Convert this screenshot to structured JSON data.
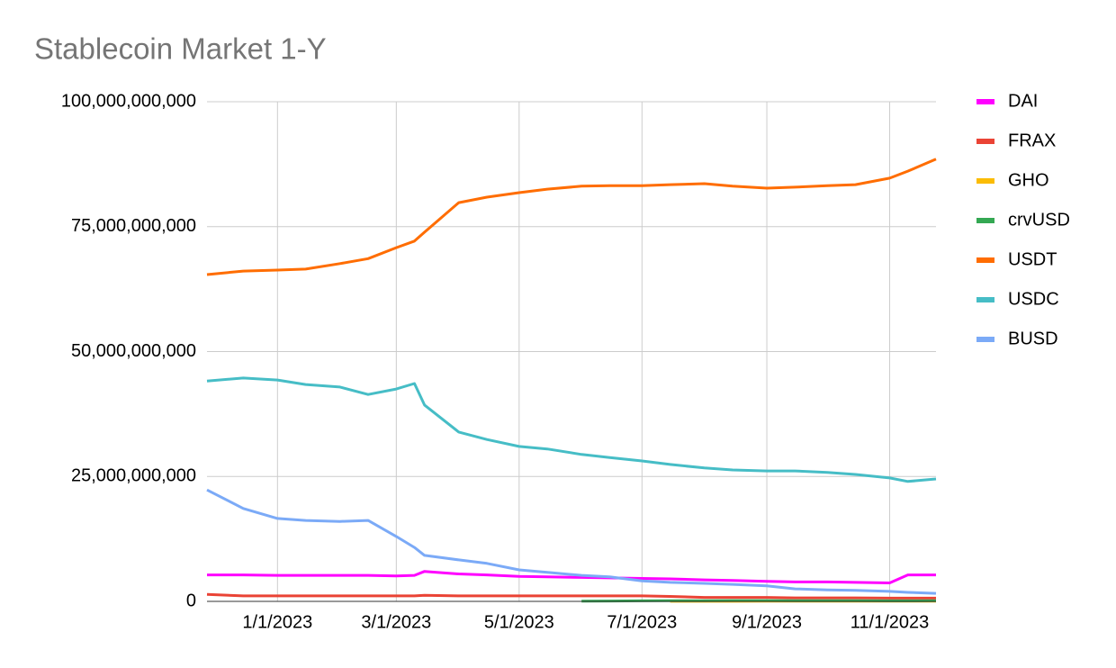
{
  "chart_data": {
    "type": "line",
    "title": "Stablecoin Market 1-Y",
    "x": [
      "2022-11-27",
      "2022-12-15",
      "2023-01-01",
      "2023-01-15",
      "2023-02-01",
      "2023-02-15",
      "2023-03-01",
      "2023-03-10",
      "2023-03-15",
      "2023-04-01",
      "2023-04-15",
      "2023-05-01",
      "2023-05-15",
      "2023-06-01",
      "2023-06-15",
      "2023-07-01",
      "2023-07-15",
      "2023-08-01",
      "2023-08-15",
      "2023-09-01",
      "2023-09-15",
      "2023-10-01",
      "2023-10-15",
      "2023-11-01",
      "2023-11-10",
      "2023-11-24"
    ],
    "xlim": [
      "2022-11-27",
      "2023-11-24"
    ],
    "xticks": [
      {
        "value": "2023-01-01",
        "label": "1/1/2023"
      },
      {
        "value": "2023-03-01",
        "label": "3/1/2023"
      },
      {
        "value": "2023-05-01",
        "label": "5/1/2023"
      },
      {
        "value": "2023-07-01",
        "label": "7/1/2023"
      },
      {
        "value": "2023-09-01",
        "label": "9/1/2023"
      },
      {
        "value": "2023-11-01",
        "label": "11/1/2023"
      }
    ],
    "ylim": [
      0,
      100000000000
    ],
    "yticks": [
      0,
      {
        "value": 25000000000,
        "label": "25,000,000,000"
      },
      {
        "value": 50000000000,
        "label": "50,000,000,000"
      },
      {
        "value": 75000000000,
        "label": "75,000,000,000"
      },
      {
        "value": 100000000000,
        "label": "100,000,000,000"
      }
    ],
    "grid": true,
    "legend": "right",
    "series": [
      {
        "name": "DAI",
        "color": "#ff00ff",
        "values": [
          5300000000,
          5300000000,
          5200000000,
          5200000000,
          5200000000,
          5200000000,
          5100000000,
          5200000000,
          6000000000,
          5500000000,
          5300000000,
          5000000000,
          4900000000,
          4800000000,
          4700000000,
          4600000000,
          4500000000,
          4300000000,
          4200000000,
          4000000000,
          3900000000,
          3900000000,
          3800000000,
          3700000000,
          5300000000,
          5300000000
        ]
      },
      {
        "name": "FRAX",
        "color": "#ea4335",
        "values": [
          1400000000,
          1100000000,
          1100000000,
          1100000000,
          1100000000,
          1100000000,
          1100000000,
          1100000000,
          1200000000,
          1100000000,
          1100000000,
          1100000000,
          1100000000,
          1100000000,
          1100000000,
          1100000000,
          1000000000,
          800000000,
          800000000,
          800000000,
          700000000,
          700000000,
          700000000,
          650000000,
          650000000,
          650000000
        ]
      },
      {
        "name": "GHO",
        "color": "#fbbc04",
        "values": [
          null,
          null,
          null,
          null,
          null,
          null,
          null,
          null,
          null,
          null,
          null,
          null,
          null,
          null,
          null,
          null,
          10000000,
          20000000,
          25000000,
          30000000,
          30000000,
          35000000,
          35000000,
          35000000,
          35000000,
          35000000
        ]
      },
      {
        "name": "crvUSD",
        "color": "#34a853",
        "values": [
          null,
          null,
          null,
          null,
          null,
          null,
          null,
          null,
          null,
          null,
          null,
          null,
          null,
          40000000,
          70000000,
          100000000,
          130000000,
          150000000,
          170000000,
          160000000,
          140000000,
          130000000,
          120000000,
          110000000,
          110000000,
          120000000
        ]
      },
      {
        "name": "USDT",
        "color": "#ff6d01",
        "values": [
          65400000000,
          66100000000,
          66300000000,
          66500000000,
          67600000000,
          68600000000,
          70800000000,
          72100000000,
          73900000000,
          79800000000,
          80900000000,
          81800000000,
          82500000000,
          83100000000,
          83200000000,
          83200000000,
          83400000000,
          83600000000,
          83100000000,
          82700000000,
          82900000000,
          83200000000,
          83400000000,
          84700000000,
          86100000000,
          88500000000
        ]
      },
      {
        "name": "USDC",
        "color": "#46bdc6",
        "values": [
          44100000000,
          44700000000,
          44300000000,
          43400000000,
          42900000000,
          41400000000,
          42500000000,
          43600000000,
          39300000000,
          33900000000,
          32400000000,
          31000000000,
          30500000000,
          29400000000,
          28800000000,
          28100000000,
          27400000000,
          26700000000,
          26300000000,
          26100000000,
          26100000000,
          25800000000,
          25400000000,
          24700000000,
          24000000000,
          24500000000
        ]
      },
      {
        "name": "BUSD",
        "color": "#7baaf7",
        "values": [
          22300000000,
          18600000000,
          16600000000,
          16200000000,
          16000000000,
          16200000000,
          13000000000,
          10800000000,
          9200000000,
          8300000000,
          7600000000,
          6300000000,
          5800000000,
          5200000000,
          4900000000,
          4100000000,
          3800000000,
          3600000000,
          3400000000,
          3100000000,
          2500000000,
          2300000000,
          2200000000,
          2000000000,
          1800000000,
          1600000000
        ]
      }
    ]
  }
}
